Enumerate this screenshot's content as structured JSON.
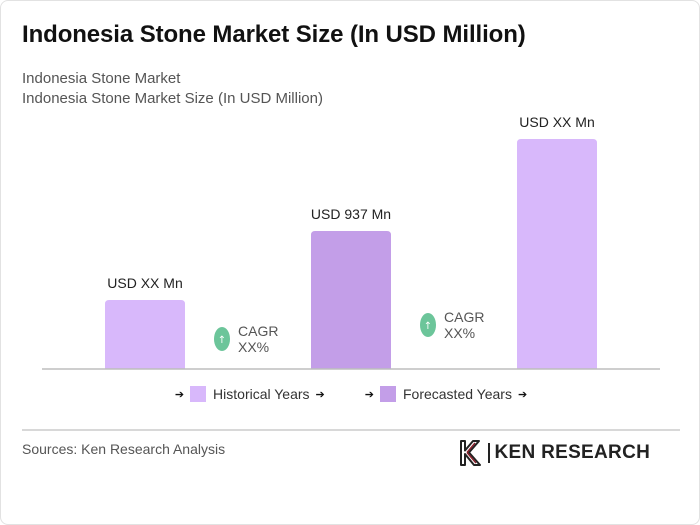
{
  "title": "Indonesia Stone Market Size (In USD Million)",
  "subtitle": {
    "line1": "Indonesia Stone Market",
    "line2": "Indonesia Stone Market Size (In USD Million)"
  },
  "chart_data": {
    "type": "bar",
    "categories": [
      "",
      "",
      ""
    ],
    "values": [
      30,
      60,
      100
    ],
    "value_labels": [
      "USD XX Mn",
      "USD 937 Mn",
      "USD XX Mn"
    ],
    "bar_kinds": [
      "historical",
      "forecast",
      "historical"
    ],
    "ylim": [
      0,
      100
    ],
    "grid": false,
    "cagr_annotations": [
      {
        "label": "CAGR",
        "value": "XX%",
        "between": [
          0,
          1
        ],
        "icon": "up-arrow-icon"
      },
      {
        "label": "CAGR",
        "value": "XX%",
        "between": [
          1,
          2
        ],
        "icon": "up-arrow-icon"
      }
    ],
    "legend": {
      "position": "bottom",
      "items": [
        {
          "label": "Historical Years",
          "color": "#d8b8fb"
        },
        {
          "label": "Forecasted Years",
          "color": "#c39ee8"
        }
      ]
    }
  },
  "colors": {
    "historical": "#d8b8fb",
    "forecast": "#c39ee8",
    "cagr_badge": "#6cc59a",
    "axis": "#bdbdbd"
  },
  "footer": {
    "source": "Sources: Ken Research Analysis",
    "logo_text": "KEN RESEARCH"
  }
}
